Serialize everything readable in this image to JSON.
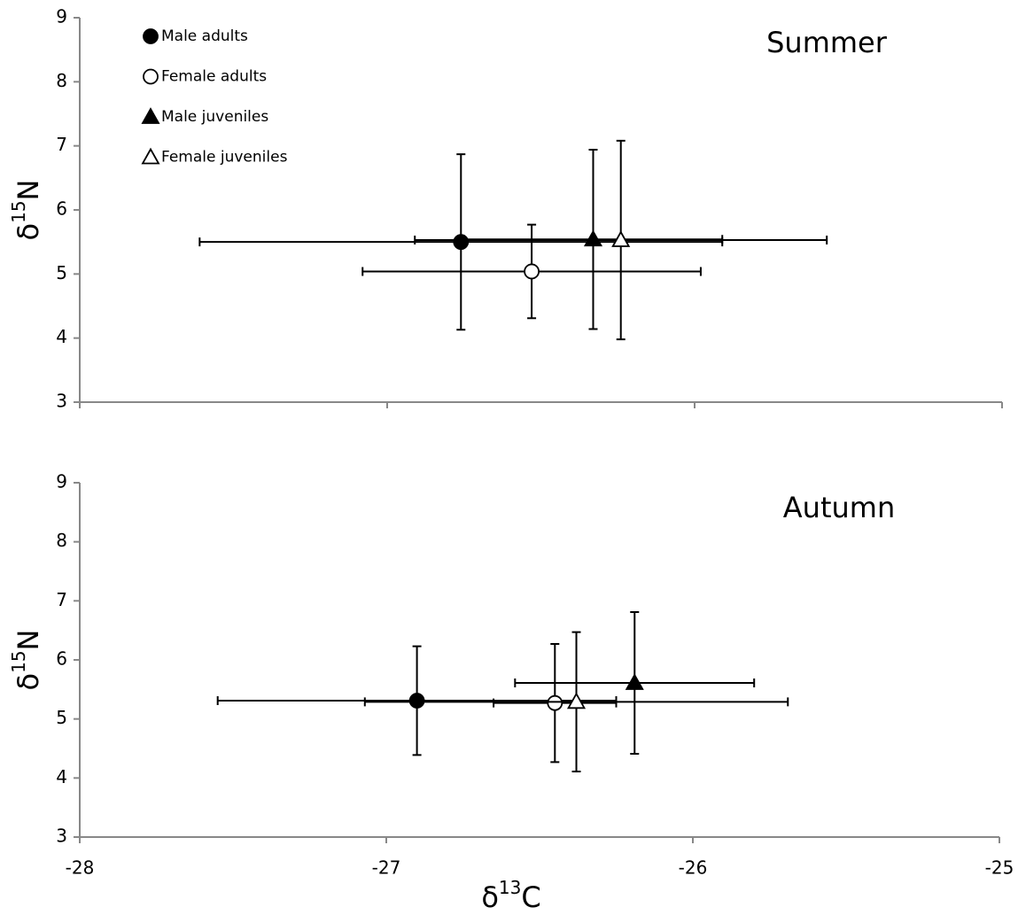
{
  "chart_data": [
    {
      "type": "scatter",
      "title": "Summer",
      "y_label": [
        "δ",
        "15",
        "N"
      ],
      "xlim": [
        -28,
        -25
      ],
      "xticks": [
        -28,
        -27,
        -26,
        -25
      ],
      "xtick_labels": false,
      "ylim": [
        3,
        9
      ],
      "yticks": [
        3,
        4,
        5,
        6,
        7,
        8,
        9
      ],
      "legend": "upper left",
      "series": [
        {
          "name": "Male adults",
          "marker": "circle",
          "color": "#000000",
          "x": [
            -26.76
          ],
          "y": [
            5.5
          ],
          "xerr": [
            0.85
          ],
          "yerr": [
            1.37
          ]
        },
        {
          "name": "Female adults",
          "marker": "circle",
          "color": "#ffffff",
          "x": [
            -26.53
          ],
          "y": [
            5.04
          ],
          "xerr": [
            0.55
          ],
          "yerr": [
            0.73
          ]
        },
        {
          "name": "Male juveniles",
          "marker": "triangle",
          "color": "#000000",
          "x": [
            -26.33
          ],
          "y": [
            5.54
          ],
          "xerr": [
            0.42
          ],
          "yerr": [
            1.4
          ]
        },
        {
          "name": "Female juveniles",
          "marker": "triangle",
          "color": "#ffffff",
          "x": [
            -26.24
          ],
          "y": [
            5.53
          ],
          "xerr": [
            0.67
          ],
          "yerr": [
            1.55
          ]
        }
      ]
    },
    {
      "type": "scatter",
      "title": "Autumn",
      "y_label": [
        "δ",
        "15",
        "N"
      ],
      "x_label": [
        "δ",
        "13",
        "C"
      ],
      "xlim": [
        -28,
        -25
      ],
      "xticks": [
        -28,
        -27,
        -26,
        -25
      ],
      "xtick_labels": true,
      "ylim": [
        3,
        9
      ],
      "yticks": [
        3,
        4,
        5,
        6,
        7,
        8,
        9
      ],
      "series": [
        {
          "marker": "circle",
          "color": "#000000",
          "x": [
            -26.9
          ],
          "y": [
            5.31
          ],
          "xerr": [
            0.65
          ],
          "yerr": [
            0.92
          ]
        },
        {
          "marker": "circle",
          "color": "#ffffff",
          "x": [
            -26.45
          ],
          "y": [
            5.27
          ],
          "xerr": [
            0.2
          ],
          "yerr": [
            1.0
          ]
        },
        {
          "marker": "triangle",
          "color": "#000000",
          "x": [
            -26.19
          ],
          "y": [
            5.61
          ],
          "xerr": [
            0.39
          ],
          "yerr": [
            1.2
          ]
        },
        {
          "marker": "triangle",
          "color": "#ffffff",
          "x": [
            -26.38
          ],
          "y": [
            5.29
          ],
          "xerr": [
            0.69
          ],
          "yerr": [
            1.18
          ]
        }
      ]
    }
  ]
}
